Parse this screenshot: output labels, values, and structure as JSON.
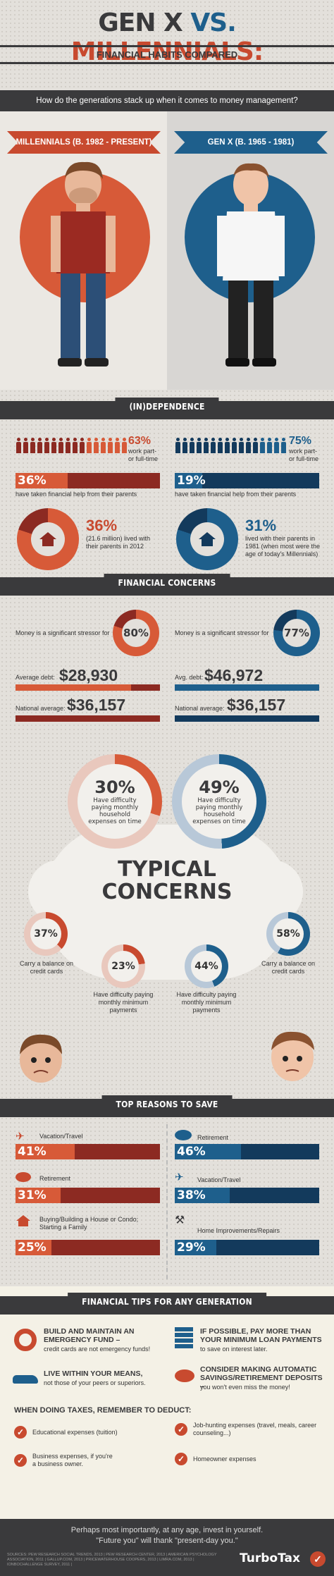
{
  "header": {
    "title_left": "GEN X",
    "title_vs": "VS.",
    "title_right": "MILLENNIALS:",
    "subtitle": "FINANCIAL HABITS COMPARED",
    "question": "How do the generations stack up when it comes to money management?"
  },
  "columns": {
    "millennials": "MILLENNIALS (B. 1982 - PRESENT)",
    "genx": "GEN X (B. 1965 - 1981)"
  },
  "independence": {
    "heading": "(IN)DEPENDENCE",
    "mil_work_pct": "63%",
    "mil_work_text": "work part- or full-time",
    "genx_work_pct": "75%",
    "genx_work_text": "work part- or full-time",
    "mil_help_pct": "36%",
    "mil_help_fill": 0.36,
    "mil_help_text": "have taken financial help from their parents",
    "genx_help_pct": "19%",
    "genx_help_fill": 0.19,
    "genx_help_text": "have taken financial help from their parents",
    "mil_lived_pct": "36%",
    "mil_lived_text": "(21.6 million) lived with their parents in 2012",
    "genx_lived_pct": "31%",
    "genx_lived_text": "lived with their parents in 1981 (when most were the age of today's Millennials)"
  },
  "concerns": {
    "heading": "FINANCIAL CONCERNS",
    "mil_stress_text": "Money is a significant stressor for",
    "mil_stress_pct": "80%",
    "mil_stress_fill": 0.8,
    "genx_stress_text": "Money is a significant stressor for",
    "genx_stress_pct": "77%",
    "genx_stress_fill": 0.77,
    "mil_debt_label": "Average debt:",
    "mil_debt": "$28,930",
    "mil_debt_fill": 0.8,
    "mil_nat_label": "National average:",
    "mil_nat": "$36,157",
    "genx_debt_label": "Avg. debt:",
    "genx_debt": "$46,972",
    "genx_debt_fill": 1.0,
    "genx_nat_label": "National average:",
    "genx_nat": "$36,157"
  },
  "typical": {
    "big_left_pct": "30%",
    "big_left_text": "Have difficulty paying monthly household expenses on time",
    "big_left_fill": 0.3,
    "big_right_pct": "49%",
    "big_right_text": "Have difficulty paying monthly household expenses on time",
    "big_right_fill": 0.49,
    "title1": "TYPICAL",
    "title2": "CONCERNS",
    "s1_pct": "37%",
    "s1_text": "Carry a balance on credit cards",
    "s1_fill": 0.37,
    "s2_pct": "23%",
    "s2_text": "Have difficulty paying monthly minimum payments",
    "s2_fill": 0.23,
    "s3_pct": "44%",
    "s3_text": "Have difficulty paying monthly minimum payments",
    "s3_fill": 0.44,
    "s4_pct": "58%",
    "s4_text": "Carry a balance on credit cards",
    "s4_fill": 0.58
  },
  "reasons": {
    "heading": "TOP REASONS TO SAVE",
    "m1_label": "Vacation/Travel",
    "m1_pct": "41%",
    "m1_fill": 0.41,
    "m2_label": "Retirement",
    "m2_pct": "31%",
    "m2_fill": 0.31,
    "m3_label": "Buying/Building a House or Condo; Starting a Family",
    "m3_pct": "25%",
    "m3_fill": 0.25,
    "g1_label": "Retirement",
    "g1_pct": "46%",
    "g1_fill": 0.46,
    "g2_label": "Vacation/Travel",
    "g2_pct": "38%",
    "g2_fill": 0.38,
    "g3_label": "Home Improvements/Repairs",
    "g3_pct": "29%",
    "g3_fill": 0.29
  },
  "tips": {
    "heading": "FINANCIAL TIPS FOR ANY GENERATION",
    "t1_title": "BUILD AND MAINTAIN AN EMERGENCY FUND –",
    "t1_text": "credit cards are not emergency funds!",
    "t2_title": "IF POSSIBLE, PAY MORE THAN YOUR MINIMUM LOAN PAYMENTS",
    "t2_text": "to save on interest later.",
    "t3_title": "LIVE WITHIN YOUR MEANS,",
    "t3_text": "not those of your peers or superiors.",
    "t4_title": "CONSIDER MAKING AUTOMATIC SAVINGS/RETIREMENT DEPOSITS –",
    "t4_text": "you won't even miss the money!",
    "taxes_heading": "WHEN DOING TAXES, REMEMBER TO DEDUCT:",
    "d1": "Educational expenses (tuition)",
    "d2": "Job-hunting expenses (travel, meals, career counseling...)",
    "d3": "Business expenses, if you're a business owner.",
    "d4": "Homeowner expenses"
  },
  "footer": {
    "line1": "Perhaps most importantly, at any age, invest in yourself.",
    "line2": "\"Future you\" will thank \"present-day you.\"",
    "sources": "SOURCES: PEW RESEARCH SOCIAL TRENDS, 2013 | PEW RESEARCH CENTER, 2013 | AMERICAN PSYCHOLOGY ASSOCIATION, 2011 | GALLUP.COM, 2013 | PRICEWATERHOUSE COOPERS, 2013 | LIMRA.COM, 2013 | IONBOCHALLENGE SURVEY, 2011 |",
    "brand": "TurboTax"
  },
  "colors": {
    "orange": "#d75a38",
    "dark_orange": "#8c2a22",
    "blue": "#1e5f8c",
    "dark_blue": "#133a5c",
    "charcoal": "#3a3a3c"
  }
}
